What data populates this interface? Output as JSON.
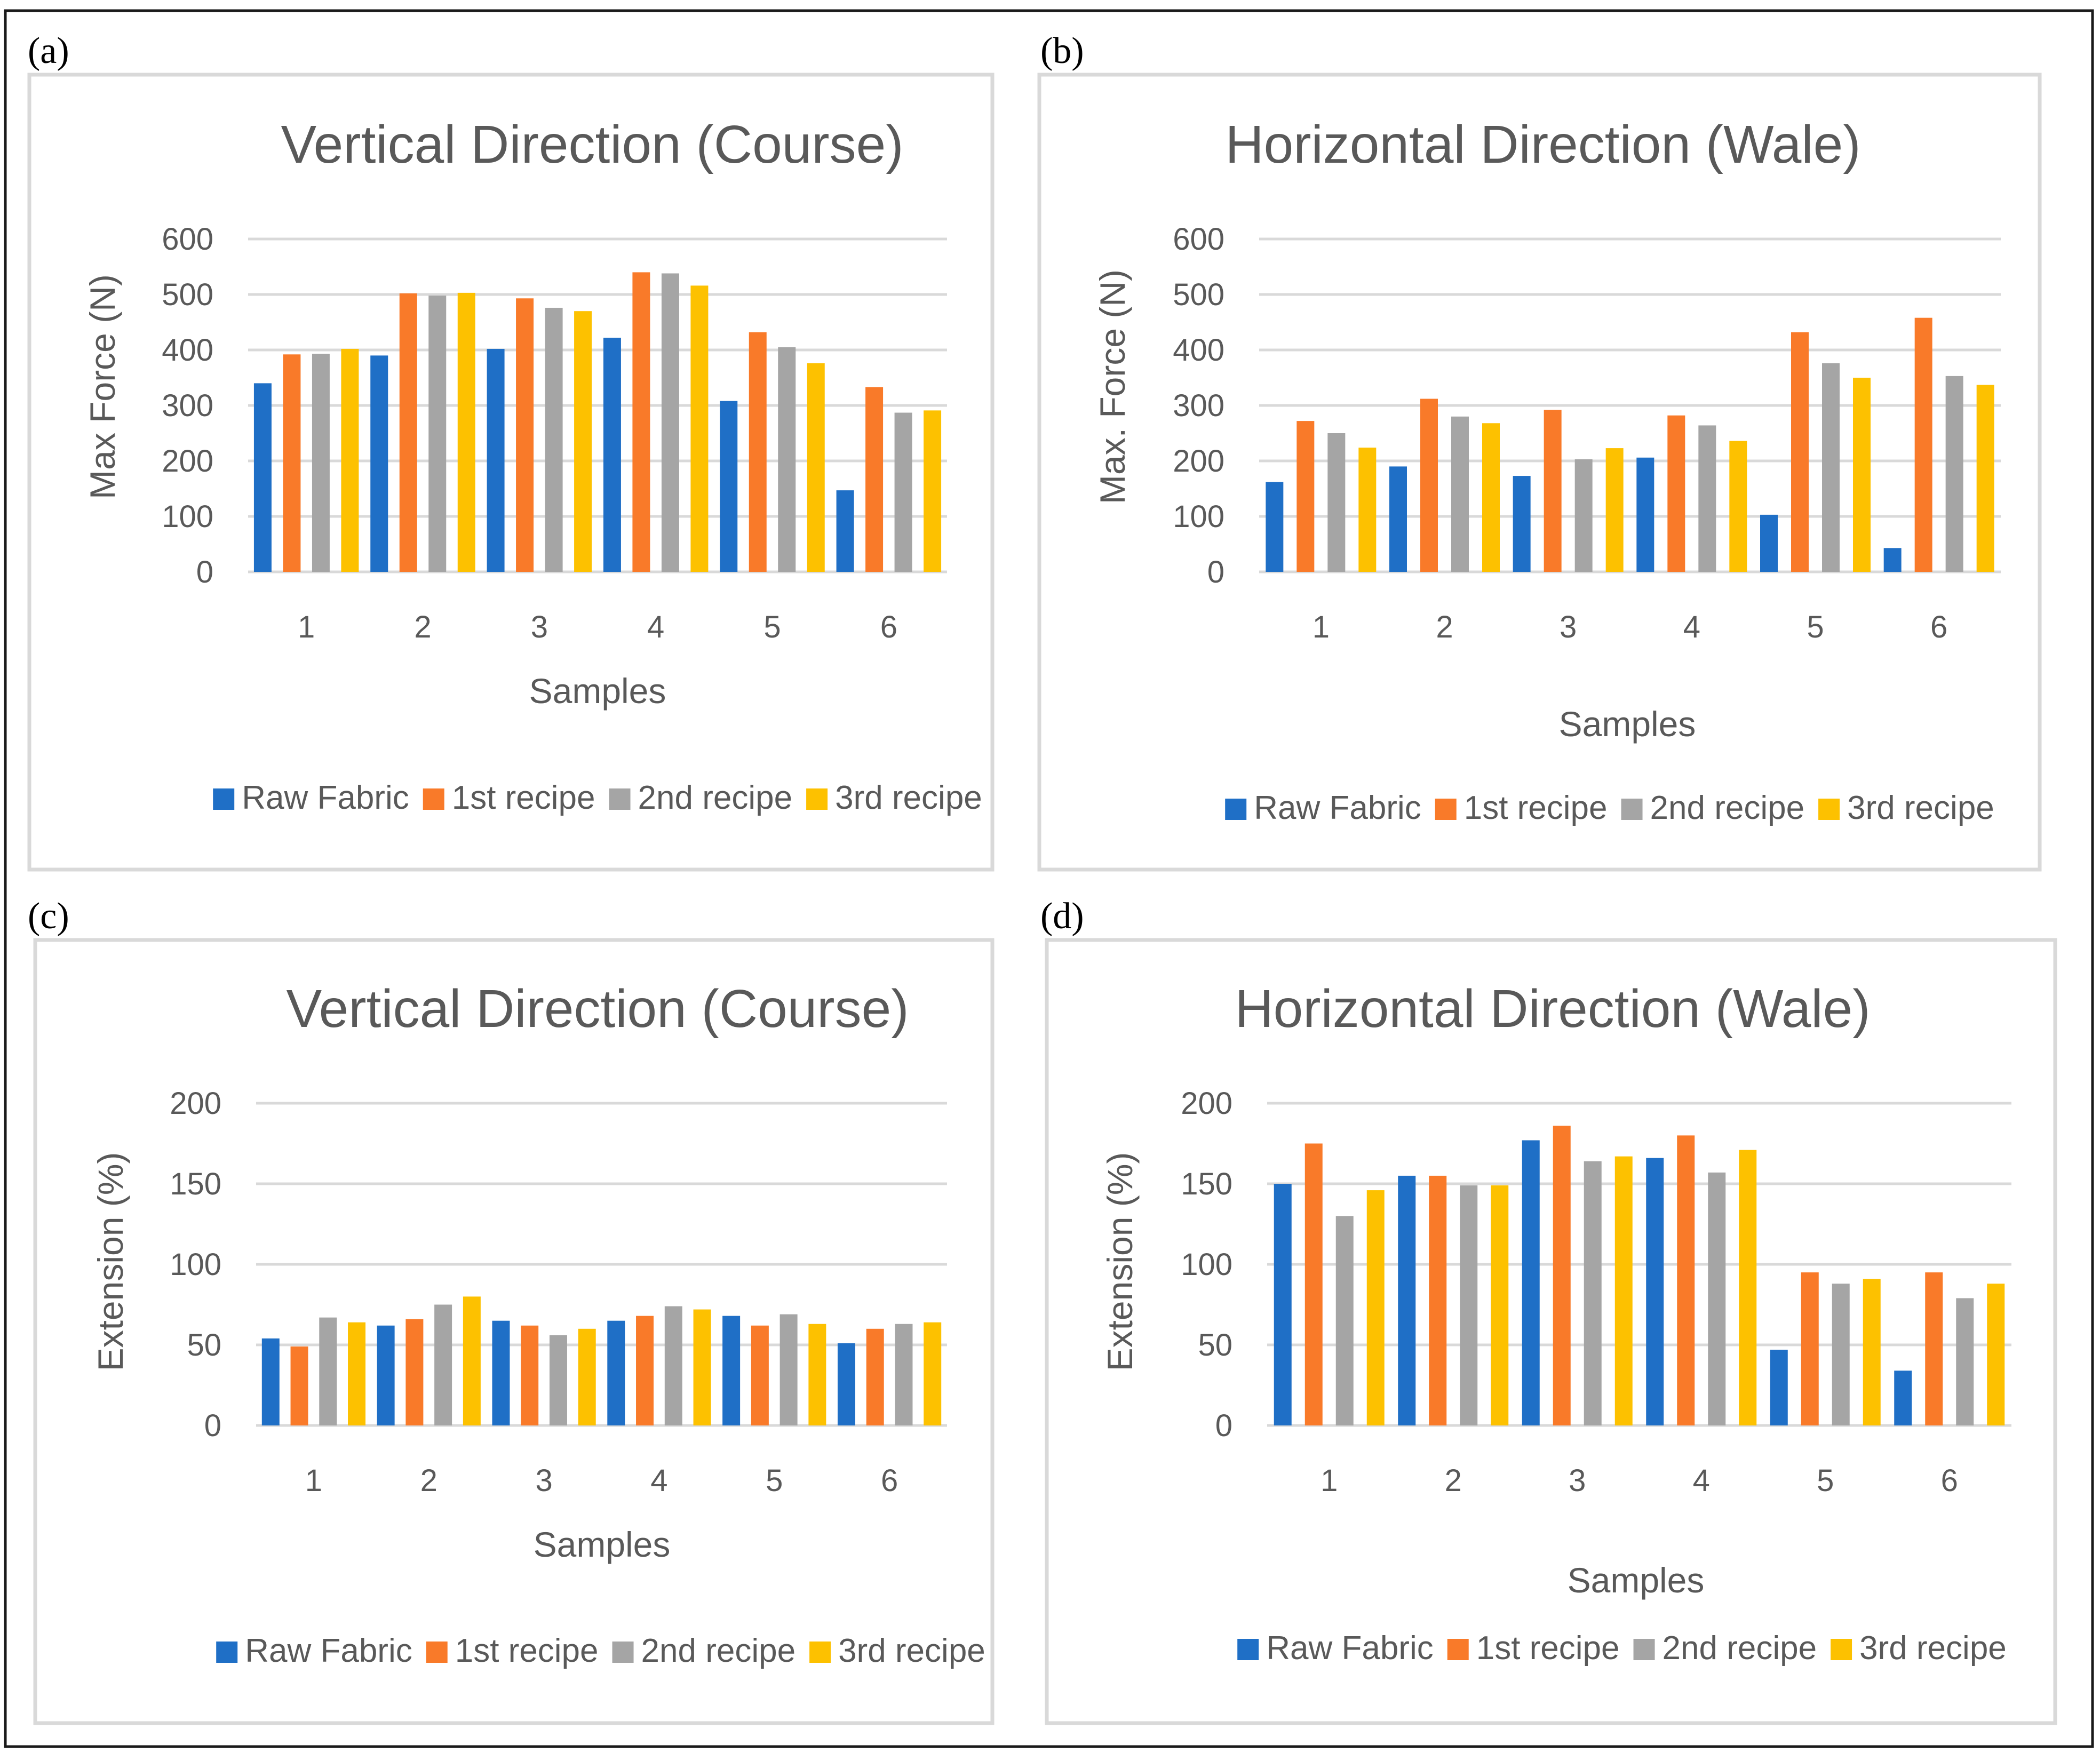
{
  "colors": {
    "raw": "#1F6FC6",
    "r1": "#F97A29",
    "r2": "#A5A5A5",
    "r3": "#FDC100"
  },
  "chart_data": [
    {
      "panel": "(a)",
      "type": "bar",
      "title": "Vertical Direction (Course)",
      "xlabel": "Samples",
      "ylabel": "Max Force (N)",
      "ylim": [
        0,
        600
      ],
      "yticks": [
        "0",
        "100",
        "200",
        "300",
        "400",
        "500",
        "600"
      ],
      "categories": [
        "1",
        "2",
        "3",
        "4",
        "5",
        "6"
      ],
      "series": [
        {
          "name": "Raw Fabric",
          "color": "#1F6FC6",
          "values": [
            340,
            390,
            402,
            422,
            308,
            147
          ]
        },
        {
          "name": "1st recipe",
          "color": "#F97A29",
          "values": [
            392,
            502,
            493,
            540,
            432,
            333
          ]
        },
        {
          "name": "2nd recipe",
          "color": "#A5A5A5",
          "values": [
            393,
            498,
            476,
            538,
            405,
            287
          ]
        },
        {
          "name": "3rd recipe",
          "color": "#FDC100",
          "values": [
            402,
            503,
            470,
            516,
            376,
            291
          ]
        }
      ]
    },
    {
      "panel": "(b)",
      "type": "bar",
      "title": "Horizontal Direction (Wale)",
      "xlabel": "Samples",
      "ylabel": "Max. Force (N)",
      "ylim": [
        0,
        600
      ],
      "yticks": [
        "0",
        "100",
        "200",
        "300",
        "400",
        "500",
        "600"
      ],
      "categories": [
        "1",
        "2",
        "3",
        "4",
        "5",
        "6"
      ],
      "series": [
        {
          "name": "Raw Fabric",
          "color": "#1F6FC6",
          "values": [
            162,
            190,
            173,
            206,
            103,
            43
          ]
        },
        {
          "name": "1st recipe",
          "color": "#F97A29",
          "values": [
            272,
            312,
            292,
            282,
            432,
            458
          ]
        },
        {
          "name": "2nd recipe",
          "color": "#A5A5A5",
          "values": [
            250,
            280,
            203,
            264,
            376,
            353
          ]
        },
        {
          "name": "3rd recipe",
          "color": "#FDC100",
          "values": [
            224,
            268,
            223,
            236,
            350,
            337
          ]
        }
      ]
    },
    {
      "panel": "(c)",
      "type": "bar",
      "title": "Vertical Direction (Course)",
      "xlabel": "Samples",
      "ylabel": "Extension (%)",
      "ylim": [
        0,
        200
      ],
      "yticks": [
        "0",
        "50",
        "100",
        "150",
        "200"
      ],
      "categories": [
        "1",
        "2",
        "3",
        "4",
        "5",
        "6"
      ],
      "series": [
        {
          "name": "Raw Fabric",
          "color": "#1F6FC6",
          "values": [
            54,
            62,
            65,
            65,
            68,
            51
          ]
        },
        {
          "name": "1st recipe",
          "color": "#F97A29",
          "values": [
            49,
            66,
            62,
            68,
            62,
            60
          ]
        },
        {
          "name": "2nd recipe",
          "color": "#A5A5A5",
          "values": [
            67,
            75,
            56,
            74,
            69,
            63
          ]
        },
        {
          "name": "3rd recipe",
          "color": "#FDC100",
          "values": [
            64,
            80,
            60,
            72,
            63,
            64
          ]
        }
      ]
    },
    {
      "panel": "(d)",
      "type": "bar",
      "title": "Horizontal Direction (Wale)",
      "xlabel": "Samples",
      "ylabel": "Extension (%)",
      "ylim": [
        0,
        200
      ],
      "yticks": [
        "0",
        "50",
        "100",
        "150",
        "200"
      ],
      "categories": [
        "1",
        "2",
        "3",
        "4",
        "5",
        "6"
      ],
      "series": [
        {
          "name": "Raw Fabric",
          "color": "#1F6FC6",
          "values": [
            150,
            155,
            177,
            166,
            47,
            34
          ]
        },
        {
          "name": "1st recipe",
          "color": "#F97A29",
          "values": [
            175,
            155,
            186,
            180,
            95,
            95
          ]
        },
        {
          "name": "2nd recipe",
          "color": "#A5A5A5",
          "values": [
            130,
            149,
            164,
            157,
            88,
            79
          ]
        },
        {
          "name": "3rd recipe",
          "color": "#FDC100",
          "values": [
            146,
            149,
            167,
            171,
            91,
            88
          ]
        }
      ]
    }
  ]
}
